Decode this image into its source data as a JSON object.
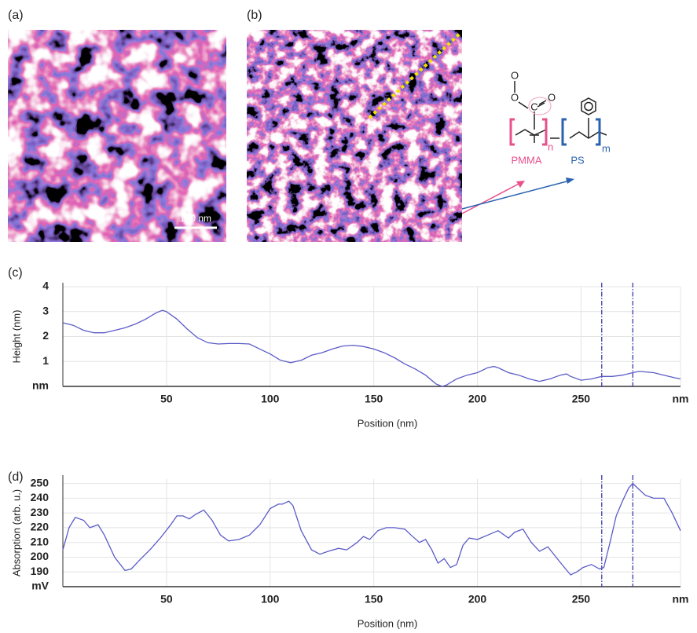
{
  "panels": {
    "a": "(a)",
    "b": "(b)",
    "scale_bar": "100 nm"
  },
  "structure": {
    "o_methyl": "O",
    "carbonyl_c": "C",
    "carbonyl_o": "O",
    "n": "n",
    "m": "m",
    "pmma": "PMMA",
    "ps": "PS"
  },
  "chart_data": [
    {
      "type": "line",
      "panel_label": "(c)",
      "x_label": "Position (nm)",
      "y_label": "Height (nm)",
      "color": "#5b5bc8",
      "grid": true,
      "x": [
        0,
        5,
        10,
        15,
        20,
        25,
        30,
        35,
        40,
        45,
        48,
        50,
        55,
        60,
        65,
        70,
        75,
        80,
        85,
        90,
        95,
        100,
        105,
        110,
        115,
        120,
        125,
        130,
        135,
        140,
        145,
        150,
        155,
        160,
        165,
        170,
        175,
        180,
        183,
        185,
        190,
        195,
        200,
        205,
        208,
        210,
        215,
        220,
        225,
        230,
        235,
        240,
        243,
        245,
        250,
        255,
        260,
        265,
        270,
        275,
        278,
        285,
        290,
        295,
        298
      ],
      "values": [
        2.55,
        2.45,
        2.25,
        2.15,
        2.15,
        2.25,
        2.35,
        2.5,
        2.7,
        2.95,
        3.05,
        3.0,
        2.7,
        2.3,
        1.95,
        1.75,
        1.7,
        1.72,
        1.72,
        1.7,
        1.5,
        1.3,
        1.05,
        0.95,
        1.05,
        1.25,
        1.35,
        1.5,
        1.62,
        1.65,
        1.6,
        1.5,
        1.35,
        1.15,
        0.9,
        0.7,
        0.45,
        0.1,
        0.0,
        0.05,
        0.3,
        0.45,
        0.55,
        0.75,
        0.8,
        0.75,
        0.55,
        0.45,
        0.3,
        0.2,
        0.3,
        0.45,
        0.5,
        0.4,
        0.25,
        0.3,
        0.4,
        0.4,
        0.45,
        0.55,
        0.6,
        0.55,
        0.45,
        0.35,
        0.3
      ],
      "xlim": [
        0,
        298
      ],
      "xticks": [
        50,
        100,
        150,
        200,
        250,
        {
          "value": 298,
          "label": "nm"
        }
      ],
      "ylim": [
        0,
        4
      ],
      "yticks": [
        {
          "value": 0,
          "label": "nm"
        },
        1,
        2,
        3,
        4
      ],
      "vlines": [
        260,
        275
      ]
    },
    {
      "type": "line",
      "panel_label": "(d)",
      "x_label": "Position (nm)",
      "y_label": "Absorption (arb. u.)",
      "color": "#5b5bc8",
      "grid": true,
      "x": [
        0,
        3,
        6,
        10,
        13,
        17,
        20,
        25,
        30,
        33,
        37,
        42,
        47,
        52,
        55,
        58,
        61,
        64,
        68,
        72,
        76,
        80,
        85,
        90,
        95,
        100,
        104,
        106,
        109,
        111,
        115,
        120,
        124,
        128,
        133,
        137,
        142,
        145,
        148,
        152,
        156,
        160,
        165,
        168,
        172,
        175,
        178,
        181,
        184,
        187,
        190,
        193,
        196,
        200,
        205,
        210,
        215,
        218,
        222,
        226,
        230,
        234,
        238,
        242,
        245,
        248,
        251,
        255,
        259,
        261,
        264,
        267,
        270,
        273,
        275,
        278,
        281,
        285,
        290,
        294,
        298
      ],
      "values": [
        205,
        220,
        227,
        225,
        220,
        222,
        215,
        200,
        191,
        192,
        198,
        205,
        213,
        222,
        228,
        228,
        226,
        229,
        232,
        225,
        215,
        211,
        212,
        215,
        222,
        233,
        236,
        236,
        238,
        235,
        218,
        205,
        202,
        204,
        206,
        205,
        210,
        214,
        212,
        218,
        220,
        220,
        219,
        215,
        210,
        212,
        205,
        196,
        199,
        193,
        195,
        208,
        213,
        212,
        215,
        218,
        213,
        217,
        219,
        210,
        204,
        207,
        200,
        193,
        188,
        190,
        193,
        195,
        192,
        193,
        210,
        228,
        238,
        247,
        250,
        246,
        242,
        240,
        240,
        230,
        218
      ],
      "xlim": [
        0,
        298
      ],
      "xticks": [
        50,
        100,
        150,
        200,
        250,
        {
          "value": 298,
          "label": "nm"
        }
      ],
      "ylim": [
        180,
        253
      ],
      "yticks": [
        {
          "value": 180,
          "label": "mV"
        },
        190,
        200,
        210,
        220,
        230,
        240,
        250
      ],
      "vlines": [
        260,
        275
      ]
    }
  ]
}
